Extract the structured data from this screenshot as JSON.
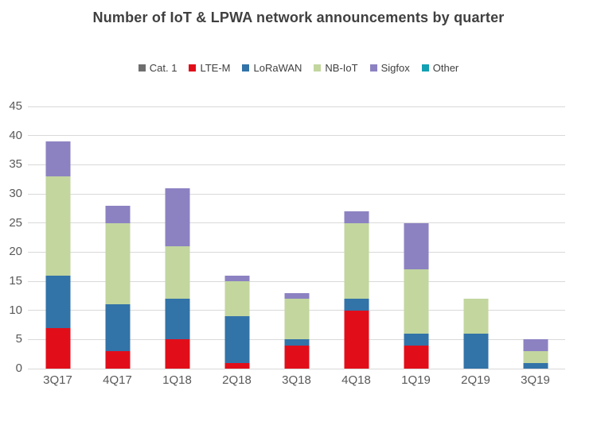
{
  "title": "Number of IoT & LPWA network announcements by quarter",
  "colors": {
    "title_text": "#404040",
    "axis_text": "#595959",
    "gridline": "#d9d9d9",
    "background": "#ffffff"
  },
  "chart_data": {
    "type": "bar",
    "stacked": true,
    "title": "Number of IoT & LPWA network announcements by quarter",
    "xlabel": "",
    "ylabel": "",
    "ylim": [
      0,
      45
    ],
    "ytick_step": 5,
    "grid": true,
    "legend_position": "top",
    "categories": [
      "3Q17",
      "4Q17",
      "1Q18",
      "2Q18",
      "3Q18",
      "4Q18",
      "1Q19",
      "2Q19",
      "3Q19"
    ],
    "series": [
      {
        "name": "Cat. 1",
        "color": "#6e6e6e",
        "values": [
          0,
          0,
          0,
          0,
          0,
          0,
          0,
          0,
          0
        ]
      },
      {
        "name": "LTE-M",
        "color": "#e10e1a",
        "values": [
          7,
          3,
          5,
          1,
          4,
          10,
          4,
          0,
          0
        ]
      },
      {
        "name": "LoRaWAN",
        "color": "#3273a8",
        "values": [
          9,
          8,
          7,
          8,
          1,
          2,
          2,
          6,
          1
        ]
      },
      {
        "name": "NB-IoT",
        "color": "#c2d69e",
        "values": [
          17,
          14,
          9,
          6,
          7,
          13,
          11,
          6,
          2
        ]
      },
      {
        "name": "Sigfox",
        "color": "#8c82c2",
        "values": [
          6,
          3,
          10,
          1,
          1,
          2,
          8,
          0,
          2
        ]
      },
      {
        "name": "Other",
        "color": "#12a0b2",
        "values": [
          0,
          0,
          0,
          0,
          0,
          0,
          0,
          0,
          0
        ]
      }
    ],
    "totals": [
      39,
      28,
      31,
      16,
      13,
      27,
      25,
      12,
      5
    ]
  }
}
